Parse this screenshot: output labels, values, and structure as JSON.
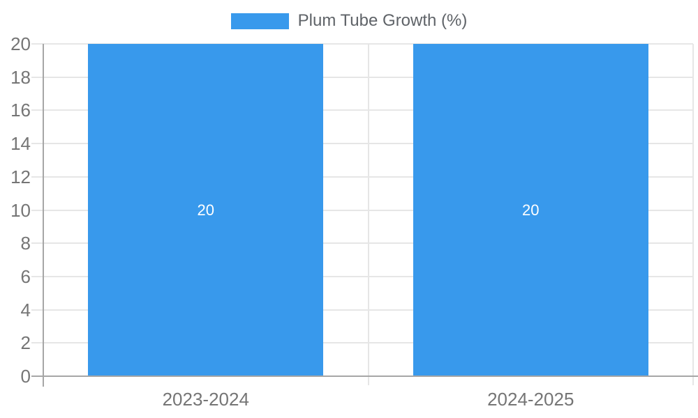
{
  "chart_data": {
    "type": "bar",
    "title": "",
    "legend": {
      "label": "Plum Tube Growth (%)",
      "position": "top"
    },
    "categories": [
      "2023-2024",
      "2024-2025"
    ],
    "series": [
      {
        "name": "Plum Tube Growth (%)",
        "values": [
          20,
          20
        ]
      }
    ],
    "bar_value_labels": [
      "20",
      "20"
    ],
    "xlabel": "",
    "ylabel": "",
    "ylim": [
      0,
      20
    ],
    "yticks": [
      0,
      2,
      4,
      6,
      8,
      10,
      12,
      14,
      16,
      18,
      20
    ],
    "grid": true
  },
  "colors": {
    "bar": "#3899ec",
    "gridline": "#e6e6e6",
    "axis": "#a6a6a6",
    "tick_label": "#757575",
    "category_label": "#757575",
    "legend_label": "#5f6368",
    "bar_label": "#ffffff",
    "background": "#ffffff"
  }
}
